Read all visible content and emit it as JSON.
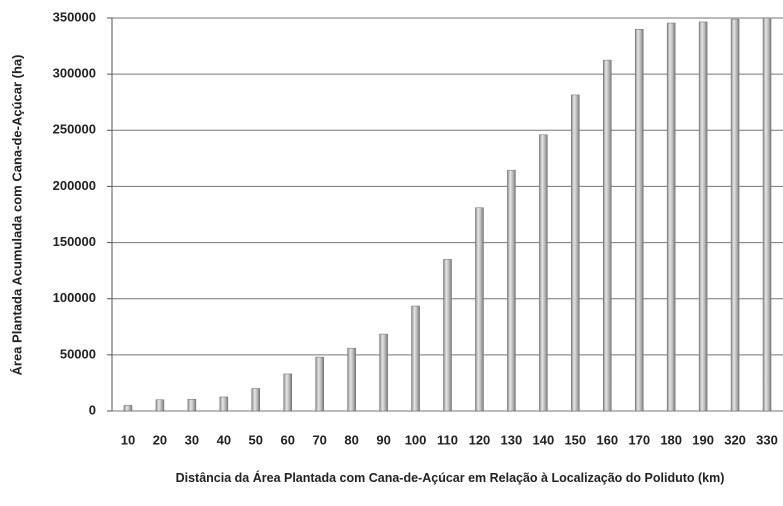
{
  "chart_data": {
    "type": "bar",
    "y_label": "Área Plantada  Acumulada com Cana-de-Açúcar  (ha)",
    "x_label": "Distância da Área Plantada  com Cana-de-Açúcar  em Relação à Localização  do Poliduto (km)",
    "categories": [
      "10",
      "20",
      "30",
      "40",
      "50",
      "60",
      "70",
      "80",
      "90",
      "100",
      "110",
      "120",
      "130",
      "140",
      "150",
      "160",
      "170",
      "180",
      "190",
      "320",
      "330"
    ],
    "values": [
      5000,
      10000,
      10500,
      12500,
      20000,
      33000,
      48000,
      56000,
      68500,
      93500,
      135000,
      181000,
      214500,
      246000,
      281500,
      312500,
      340000,
      345500,
      346500,
      349000,
      350000
    ],
    "color": "#b4b4b4",
    "ylim": [
      0,
      350000
    ],
    "yticks": [
      0,
      50000,
      100000,
      150000,
      200000,
      250000,
      300000,
      350000
    ],
    "grid": true
  }
}
